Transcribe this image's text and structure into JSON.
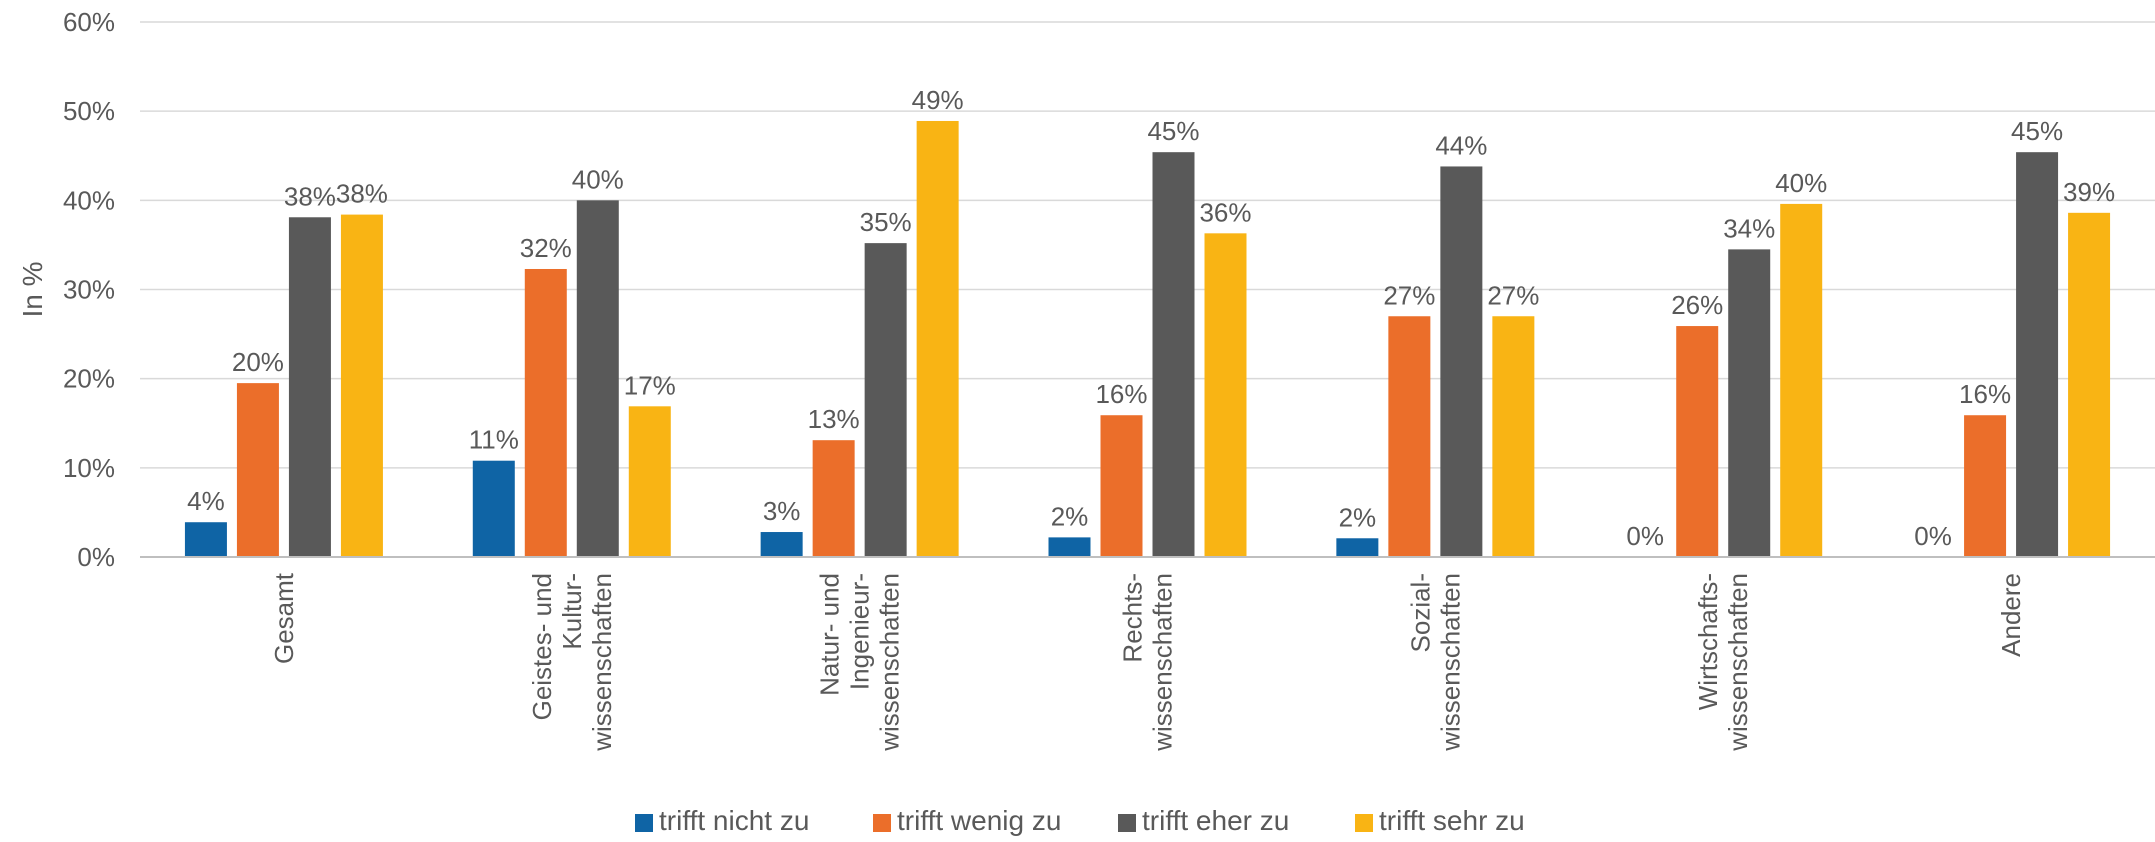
{
  "chart_data": {
    "type": "bar",
    "ylabel": "In %",
    "ylim": [
      0,
      60
    ],
    "yticks": [
      "0%",
      "10%",
      "20%",
      "30%",
      "40%",
      "50%",
      "60%"
    ],
    "grid": true,
    "legend_position": "bottom",
    "categories": [
      [
        "Gesamt"
      ],
      [
        "Geistes- und",
        "Kultur-",
        "wissenschaften"
      ],
      [
        "Natur- und",
        "Ingenieur-",
        "wissenschaften"
      ],
      [
        "Rechts-",
        "wissenschaften"
      ],
      [
        "Sozial-",
        "wissenschaften"
      ],
      [
        "Wirtschafts-",
        "wissenschaften"
      ],
      [
        "Andere"
      ]
    ],
    "series": [
      {
        "name": "trifft nicht zu",
        "color": "#0f64a5",
        "values": [
          3.9,
          10.8,
          2.8,
          2.2,
          2.1,
          0,
          0
        ],
        "labels": [
          "4%",
          "11%",
          "3%",
          "2%",
          "2%",
          "0%",
          "0%"
        ]
      },
      {
        "name": "trifft wenig zu",
        "color": "#eb6e2a",
        "values": [
          19.5,
          32.3,
          13.1,
          15.9,
          27.0,
          25.9,
          15.9
        ],
        "labels": [
          "20%",
          "32%",
          "13%",
          "16%",
          "27%",
          "26%",
          "16%"
        ]
      },
      {
        "name": "trifft eher zu",
        "color": "#595959",
        "values": [
          38.1,
          40.0,
          35.2,
          45.4,
          43.8,
          34.5,
          45.4
        ],
        "labels": [
          "38%",
          "40%",
          "35%",
          "45%",
          "44%",
          "34%",
          "45%"
        ]
      },
      {
        "name": "trifft sehr zu",
        "color": "#f9b414",
        "values": [
          38.4,
          16.9,
          48.9,
          36.3,
          27.0,
          39.6,
          38.6
        ],
        "labels": [
          "38%",
          "17%",
          "49%",
          "36%",
          "27%",
          "40%",
          "39%"
        ]
      }
    ]
  }
}
